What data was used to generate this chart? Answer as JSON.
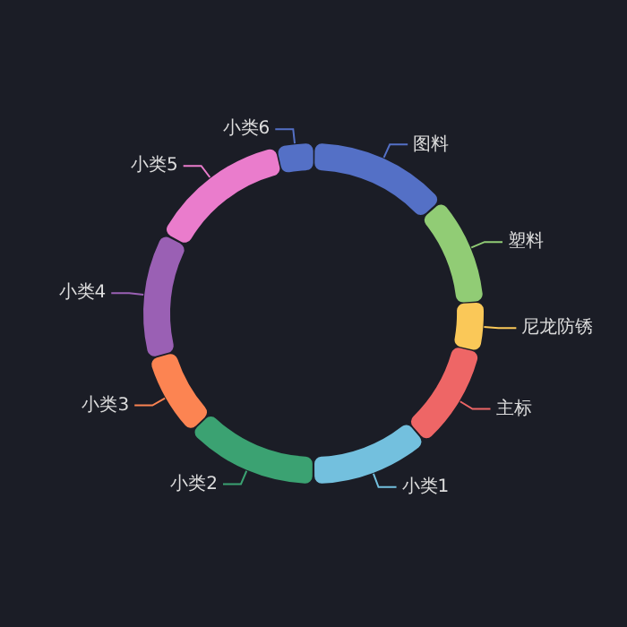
{
  "chart_data": {
    "type": "donut",
    "categories": [
      "图料",
      "塑料",
      "尼龙防锈",
      "主标",
      "小类1",
      "小类2",
      "小类3",
      "小类4",
      "小类5",
      "小类6"
    ],
    "values": [
      13.5,
      10.4,
      4.7,
      10,
      11.4,
      12.8,
      7.9,
      12.1,
      13.7,
      3.5
    ],
    "colors": [
      "#5470c6",
      "#91cc75",
      "#fac858",
      "#ee6666",
      "#73c0de",
      "#3ba272",
      "#fc8452",
      "#9a60b4",
      "#ea7ccc",
      "#5470c6"
    ],
    "legend": false
  }
}
